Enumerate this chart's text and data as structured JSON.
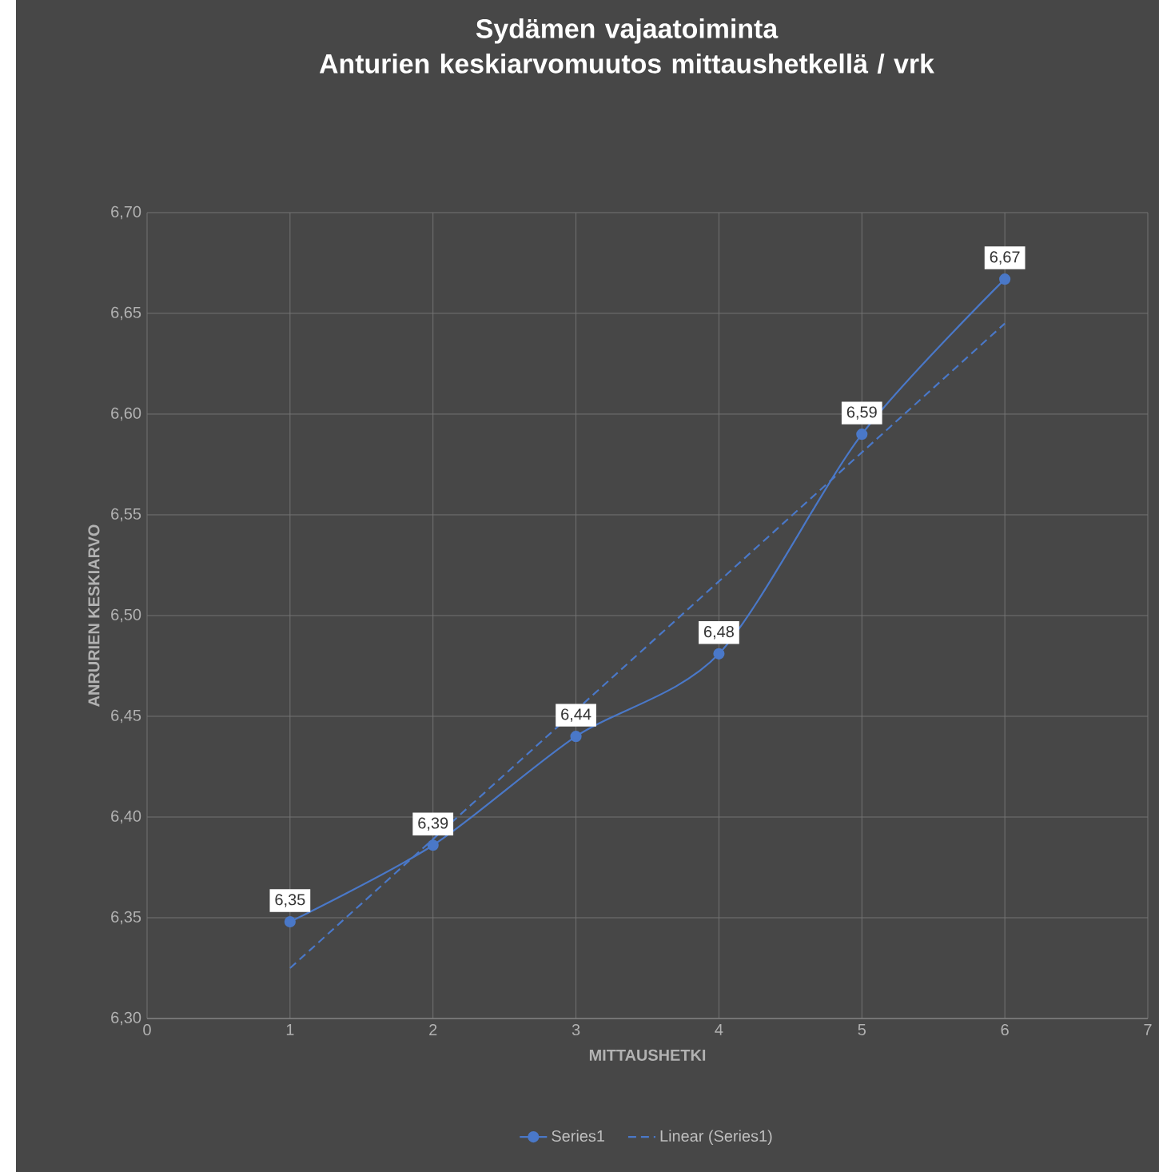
{
  "chart_data": {
    "type": "line",
    "title": "Sydämen vajaatoiminta",
    "subtitle": "Anturien keskiarvomuutos mittaushetkellä / vrk",
    "xlabel": "MITTAUSHETKI",
    "ylabel": "ANRURIEN KESKIARVO",
    "x": [
      1,
      2,
      3,
      4,
      5,
      6
    ],
    "series": [
      {
        "name": "Series1",
        "color": "#4a78c8",
        "marker": "circle",
        "line_style": "solid",
        "values": [
          6.348,
          6.386,
          6.44,
          6.481,
          6.59,
          6.667
        ],
        "value_labels": [
          "6,35",
          "6,39",
          "6,44",
          "6,48",
          "6,59",
          "6,67"
        ]
      },
      {
        "name": "Linear (Series1)",
        "type": "line",
        "color": "#4a78c8",
        "marker": "none",
        "line_style": "dashed",
        "x": [
          1,
          6
        ],
        "values": [
          6.325,
          6.645
        ]
      }
    ],
    "xlim": [
      0,
      7
    ],
    "xticks": [
      0,
      1,
      2,
      3,
      4,
      5,
      6,
      7
    ],
    "ylim": [
      6.3,
      6.7
    ],
    "yticks": [
      {
        "value": 6.3,
        "label": "6,30"
      },
      {
        "value": 6.35,
        "label": "6,35"
      },
      {
        "value": 6.4,
        "label": "6,40"
      },
      {
        "value": 6.45,
        "label": "6,45"
      },
      {
        "value": 6.5,
        "label": "6,50"
      },
      {
        "value": 6.55,
        "label": "6,55"
      },
      {
        "value": 6.6,
        "label": "6,60"
      },
      {
        "value": 6.65,
        "label": "6,65"
      },
      {
        "value": 6.7,
        "label": "6,70"
      }
    ],
    "grid": true,
    "legend": "bottom"
  }
}
